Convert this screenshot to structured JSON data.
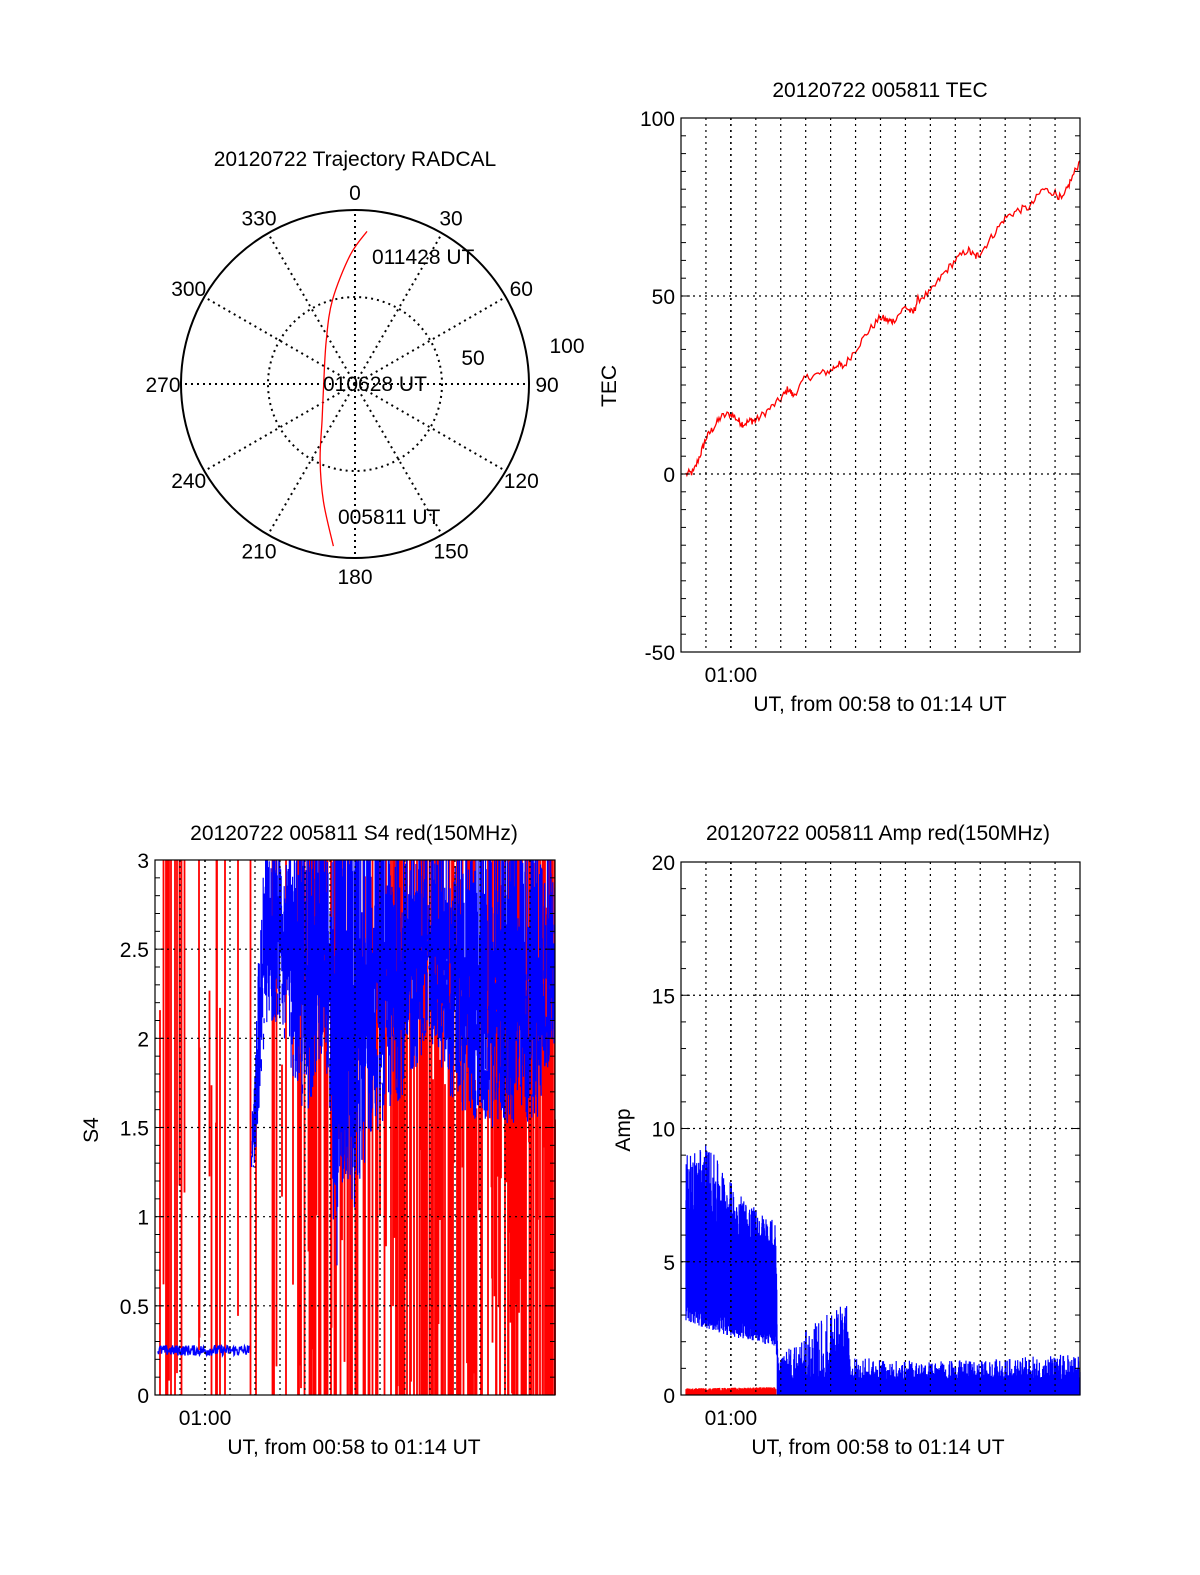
{
  "chart_data": [
    {
      "type": "polar",
      "title": "20120722 Trajectory RADCAL",
      "angle_labels": [
        "0",
        "30",
        "60",
        "90",
        "120",
        "150",
        "180",
        "210",
        "240",
        "270",
        "300",
        "330"
      ],
      "radius_labels": [
        "50",
        "100"
      ],
      "rlim": [
        0,
        100
      ],
      "grid": true,
      "trajectory_az_r": [
        [
          187.6,
          94
        ],
        [
          195,
          70
        ],
        [
          204.7,
          48
        ],
        [
          222.5,
          28
        ],
        [
          270,
          18
        ],
        [
          326.6,
          30
        ],
        [
          345,
          50
        ],
        [
          357.8,
          74
        ],
        [
          4.5,
          88
        ]
      ],
      "annotations": {
        "start": "005811 UT",
        "middle": "010628 UT",
        "end": "011428 UT"
      },
      "color": "#ff0000"
    },
    {
      "type": "line",
      "title": "20120722 005811 TEC",
      "xlabel": "UT, from 00:58 to 01:14 UT",
      "ylabel": "TEC",
      "xtick_labels": [
        "01:00"
      ],
      "ytick_labels": [
        "100",
        "50",
        "0",
        "-50"
      ],
      "xlim_minutes_after_0058": [
        0,
        16
      ],
      "ylim": [
        -50,
        100
      ],
      "grid": true,
      "series": [
        {
          "name": "TEC",
          "color": "#ff0000",
          "x": [
            0.2,
            0.5,
            0.8,
            1.0,
            1.3,
            1.6,
            2.0,
            2.3,
            2.5,
            2.8,
            3.0,
            3.5,
            4.0,
            4.3,
            4.5,
            5.0,
            5.5,
            6.0,
            6.3,
            6.5,
            7.0,
            7.5,
            8.0,
            8.3,
            8.5,
            9.0,
            9.3,
            9.5,
            10.0,
            10.5,
            11.0,
            11.5,
            11.8,
            12.0,
            12.5,
            13.0,
            13.5,
            14.0,
            14.5,
            15.0,
            15.3,
            15.6,
            16.0
          ],
          "y": [
            0,
            0.5,
            6,
            10,
            13,
            16,
            17,
            15,
            14,
            15,
            15,
            18,
            21,
            24,
            22,
            27,
            28,
            29,
            31,
            30,
            35,
            40,
            44,
            43,
            43,
            47,
            45,
            49,
            51,
            56,
            60,
            63,
            61,
            62,
            67,
            72,
            74,
            75,
            80,
            79,
            77,
            82,
            88
          ]
        }
      ]
    },
    {
      "type": "line",
      "title": "20120722 005811 S4 red(150MHz)",
      "xlabel": "UT, from 00:58 to 01:14 UT",
      "ylabel": "S4",
      "xtick_labels": [
        "01:00"
      ],
      "ytick_labels": [
        "3",
        "2.5",
        "2",
        "1.5",
        "1",
        "0.5",
        "0"
      ],
      "xlim_minutes_after_0058": [
        0,
        16
      ],
      "ylim": [
        0,
        3
      ],
      "grid": true,
      "series": [
        {
          "name": "blue",
          "color": "#0000ff",
          "quiet": {
            "t": [
              0.1,
              3.8
            ],
            "mean": 0.25,
            "noise": 0.03
          },
          "envelope_t_min_max": [
            [
              3.85,
              1.2,
              1.4
            ],
            [
              4.1,
              1.4,
              2.2
            ],
            [
              4.4,
              2.0,
              3
            ],
            [
              5.0,
              2.1,
              3
            ],
            [
              6.0,
              1.5,
              3
            ],
            [
              6.8,
              2.0,
              3
            ],
            [
              7.2,
              0.6,
              3
            ],
            [
              7.6,
              1.2,
              3
            ],
            [
              8.0,
              0.9,
              3
            ],
            [
              8.5,
              1.4,
              3
            ],
            [
              9.0,
              1.5,
              3
            ],
            [
              10.0,
              1.7,
              3
            ],
            [
              11.0,
              2.0,
              3
            ],
            [
              12.0,
              1.6,
              3
            ],
            [
              13.0,
              1.5,
              3
            ],
            [
              14.0,
              1.5,
              3
            ],
            [
              15.0,
              1.5,
              3
            ],
            [
              15.5,
              1.6,
              3
            ],
            [
              16.0,
              2.0,
              3
            ]
          ]
        },
        {
          "name": "red",
          "color": "#ff0000",
          "spikes_per_minute_t_density": [
            [
              0,
              6
            ],
            [
              3.8,
              3
            ],
            [
              7.5,
              14
            ],
            [
              10.5,
              18
            ],
            [
              16,
              18
            ]
          ]
        }
      ]
    },
    {
      "type": "line",
      "title": "20120722 005811 Amp red(150MHz)",
      "xlabel": "UT, from 00:58 to 01:14 UT",
      "ylabel": "Amp",
      "xtick_labels": [
        "01:00"
      ],
      "ytick_labels": [
        "20",
        "15",
        "10",
        "5",
        "0"
      ],
      "xlim_minutes_after_0058": [
        0,
        16
      ],
      "ylim": [
        0,
        20
      ],
      "grid": true,
      "series": [
        {
          "name": "blue",
          "color": "#0000ff",
          "envelope_t_min_max": [
            [
              0.2,
              2.8,
              9.0
            ],
            [
              1.0,
              2.5,
              9.5
            ],
            [
              2.0,
              2.2,
              8.0
            ],
            [
              3.0,
              2.0,
              7.0
            ],
            [
              3.8,
              1.8,
              6.5
            ],
            [
              3.9,
              0.3,
              1.2
            ],
            [
              6.6,
              0.3,
              3.5
            ],
            [
              6.8,
              0.3,
              1.2
            ],
            [
              8.0,
              0.3,
              1.0
            ],
            [
              12.0,
              0.3,
              1.0
            ],
            [
              16.0,
              0.3,
              1.3
            ]
          ]
        },
        {
          "name": "red",
          "color": "#ff0000",
          "envelope_t_min_max": [
            [
              0.2,
              0,
              0.25
            ],
            [
              3.8,
              0,
              0.3
            ]
          ]
        }
      ]
    }
  ]
}
